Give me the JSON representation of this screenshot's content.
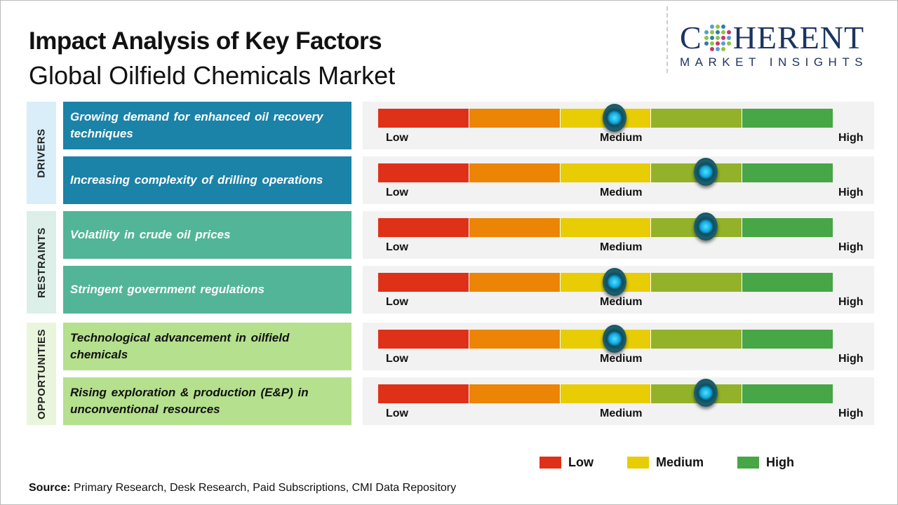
{
  "title": "Impact Analysis of Key Factors",
  "subtitle": "Global Oilfield Chemicals Market",
  "logo": {
    "main_left": "C",
    "main_right": "HERENT",
    "sub": "MARKET INSIGHTS"
  },
  "colors": {
    "drivers": "#1b82a8",
    "restraints": "#52b597",
    "opportunities": "#b5e08d",
    "drivers_strip": "#d9eef8",
    "restraints_strip": "#dcefe9",
    "opportunities_strip": "#e9f5dc",
    "scale": [
      "#de3118",
      "#ec8405",
      "#e8cd04",
      "#93b22a",
      "#47a645"
    ]
  },
  "chart_data": {
    "type": "gauge",
    "scale_labels": [
      "Low",
      "Medium",
      "High"
    ],
    "scale_range": [
      0,
      1
    ],
    "categories": [
      {
        "name": "DRIVERS",
        "factors": [
          {
            "text": "Growing demand for enhanced oil recovery techniques",
            "impact": 0.52
          },
          {
            "text": "Increasing complexity of drilling operations",
            "impact": 0.72
          }
        ]
      },
      {
        "name": "RESTRAINTS",
        "factors": [
          {
            "text": "Volatility in crude oil prices",
            "impact": 0.72
          },
          {
            "text": "Stringent government regulations",
            "impact": 0.52
          }
        ]
      },
      {
        "name": "OPPORTUNITIES",
        "factors": [
          {
            "text": "Technological advancement in oilfield chemicals",
            "impact": 0.52
          },
          {
            "text": "Rising exploration & production (E&P) in unconventional resources",
            "impact": 0.72
          }
        ]
      }
    ],
    "legend": [
      {
        "label": "Low",
        "color": "#de3118"
      },
      {
        "label": "Medium",
        "color": "#e8cd04"
      },
      {
        "label": "High",
        "color": "#47a645"
      }
    ],
    "legend_position": "bottom-right"
  },
  "source": {
    "label": "Source:",
    "text": " Primary Research, Desk Research, Paid Subscriptions, CMI Data Repository"
  }
}
